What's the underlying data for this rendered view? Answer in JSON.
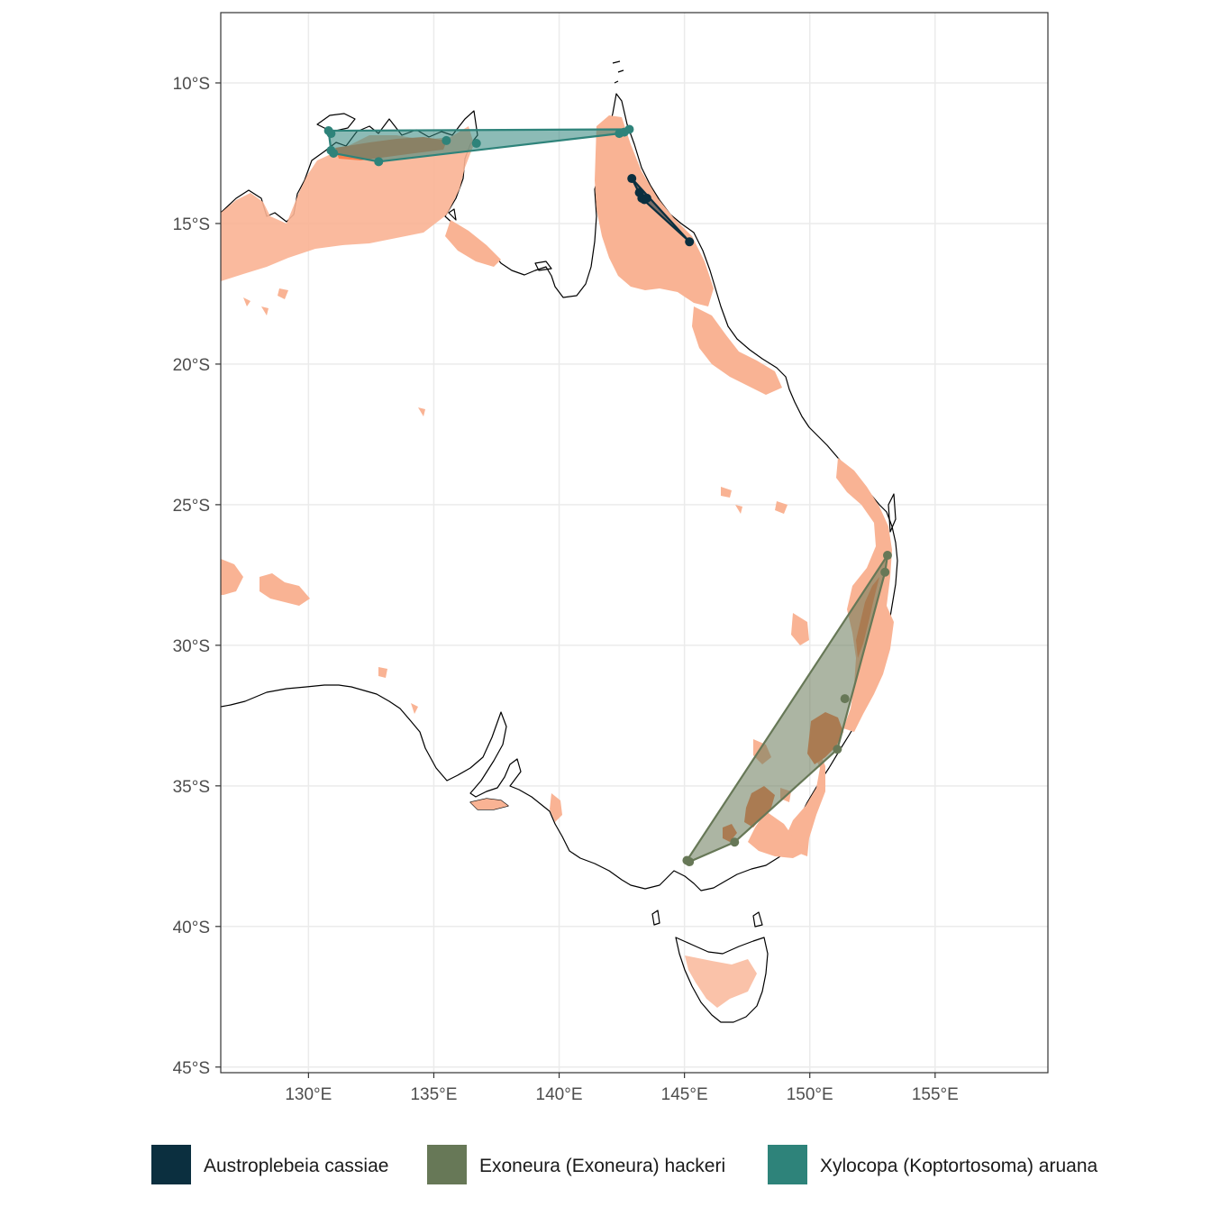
{
  "map": {
    "x_axis": {
      "min": 126.5,
      "max": 159.5,
      "ticks": [
        {
          "value": 130,
          "label": "130°E"
        },
        {
          "value": 135,
          "label": "135°E"
        },
        {
          "value": 140,
          "label": "140°E"
        },
        {
          "value": 145,
          "label": "145°E"
        },
        {
          "value": 150,
          "label": "150°E"
        },
        {
          "value": 155,
          "label": "155°E"
        }
      ]
    },
    "y_axis": {
      "min": -45.2,
      "max": -7.5,
      "ticks": [
        {
          "value": -10,
          "label": "10°S"
        },
        {
          "value": -15,
          "label": "15°S"
        },
        {
          "value": -20,
          "label": "20°S"
        },
        {
          "value": -25,
          "label": "25°S"
        },
        {
          "value": -30,
          "label": "30°S"
        },
        {
          "value": -35,
          "label": "35°S"
        },
        {
          "value": -40,
          "label": "40°S"
        },
        {
          "value": -45,
          "label": "45°S"
        }
      ]
    },
    "grid": true,
    "colors": {
      "background": "#ffffff",
      "grid": "#ebebeb",
      "coast": "#000000",
      "suitability_low": "#f9b394",
      "suitability_high": "#fb7f4c"
    }
  },
  "legend": {
    "position": "bottom",
    "items": [
      {
        "label": "Austroplebeia cassiae",
        "color": "#0b2f3f"
      },
      {
        "label": "Exoneura (Exoneura) hackeri",
        "color": "#677857"
      },
      {
        "label": "Xylocopa (Koptortosoma) aruana",
        "color": "#2e837a"
      }
    ]
  },
  "species_records": [
    {
      "name": "Austroplebeia cassiae",
      "color": "#0b2f3f",
      "points": [
        [
          142.9,
          -13.4
        ],
        [
          143.2,
          -13.9
        ],
        [
          143.3,
          -14.1
        ],
        [
          143.4,
          -14.15
        ],
        [
          143.5,
          -14.1
        ],
        [
          145.2,
          -15.65
        ]
      ]
    },
    {
      "name": "Exoneura (Exoneura) hackeri",
      "color": "#677857",
      "points": [
        [
          153.1,
          -26.8
        ],
        [
          153.0,
          -27.4
        ],
        [
          151.4,
          -31.9
        ],
        [
          151.1,
          -33.7
        ],
        [
          147.0,
          -37.0
        ],
        [
          145.2,
          -37.7
        ],
        [
          145.1,
          -37.65
        ]
      ]
    },
    {
      "name": "Xylocopa (Koptortosoma) aruana",
      "color": "#2e837a",
      "points": [
        [
          130.8,
          -11.7
        ],
        [
          130.9,
          -11.8
        ],
        [
          130.9,
          -12.4
        ],
        [
          131.0,
          -12.5
        ],
        [
          132.8,
          -12.8
        ],
        [
          135.5,
          -12.05
        ],
        [
          136.7,
          -12.15
        ],
        [
          142.4,
          -11.8
        ],
        [
          142.6,
          -11.75
        ],
        [
          142.8,
          -11.65
        ]
      ]
    }
  ]
}
